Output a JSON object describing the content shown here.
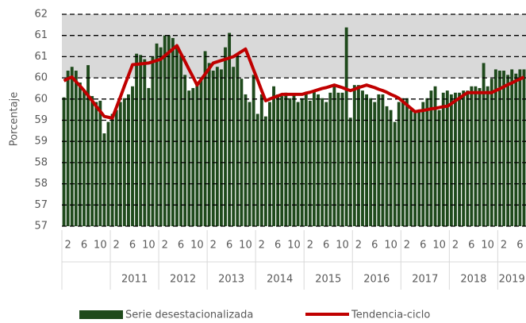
{
  "chart_data": {
    "type": "bar_line",
    "y_axis_label": "Porcentaje",
    "categories": [
      null,
      "2",
      null,
      null,
      null,
      "6",
      null,
      null,
      null,
      "10",
      null,
      null,
      null,
      "2",
      null,
      null,
      null,
      "6",
      null,
      null,
      null,
      "10",
      null,
      null,
      null,
      "2",
      null,
      null,
      null,
      "6",
      null,
      null,
      null,
      "10",
      null,
      null,
      null,
      "2",
      null,
      null,
      null,
      "6",
      null,
      null,
      null,
      "10",
      null,
      null,
      null,
      "2",
      null,
      null,
      null,
      "6",
      null,
      null,
      null,
      "10",
      null,
      null,
      null,
      "2",
      null,
      null,
      null,
      "6",
      null,
      null,
      null,
      "10",
      null,
      null,
      null,
      "2",
      null,
      null,
      null,
      "6",
      null,
      null,
      null,
      "10",
      null,
      null,
      null,
      "2",
      null,
      null,
      null,
      "6",
      null,
      null,
      null,
      "10",
      null,
      null,
      null,
      "2",
      null,
      null,
      null,
      "6",
      null,
      null,
      null,
      "10",
      null,
      null,
      null,
      "2",
      null,
      null,
      null,
      "6",
      null
    ],
    "year_labels": [
      null,
      "2011",
      "2012",
      "2013",
      "2014",
      "2015",
      "2016",
      "2017",
      "2018",
      "2019"
    ],
    "series": [
      {
        "name": "Serie desestacionalizada",
        "kind": "bar",
        "color": "#1f4a1c",
        "values": [
          59.94,
          60.57,
          60.66,
          60.57,
          60.29,
          60.1,
          60.7,
          59.97,
          59.83,
          59.86,
          59.09,
          59.36,
          59.55,
          59.64,
          59.83,
          59.92,
          60.01,
          60.2,
          60.97,
          60.94,
          60.84,
          60.16,
          60.9,
          61.21,
          61.12,
          61.4,
          61.4,
          61.34,
          61.12,
          60.94,
          60.47,
          60.1,
          60.16,
          60.23,
          60.38,
          61.03,
          60.75,
          60.57,
          60.66,
          60.6,
          61.12,
          61.46,
          60.66,
          60.94,
          60.38,
          60.01,
          59.83,
          60.47,
          59.55,
          60.01,
          59.49,
          59.83,
          60.2,
          60.01,
          59.97,
          60.05,
          59.92,
          60.01,
          59.83,
          59.92,
          60.05,
          59.86,
          60.1,
          60.01,
          59.92,
          59.83,
          60.05,
          60.23,
          60.05,
          60.05,
          61.59,
          59.46,
          60.23,
          60.23,
          60.1,
          60.01,
          59.92,
          59.83,
          60.01,
          60.01,
          59.73,
          59.64,
          59.36,
          59.83,
          59.92,
          59.92,
          59.64,
          59.64,
          59.64,
          59.83,
          59.92,
          60.1,
          60.2,
          59.64,
          60.05,
          60.1,
          60.01,
          60.05,
          60.05,
          60.1,
          60.1,
          60.2,
          60.2,
          60.16,
          60.75,
          60.2,
          60.38,
          60.6,
          60.57,
          60.57,
          60.47,
          60.6,
          60.5,
          60.6,
          60.6
        ]
      },
      {
        "name": "Tendencia-ciclo",
        "kind": "line",
        "color": "#c00000",
        "values": [
          60.33,
          60.38,
          60.42,
          60.31,
          60.21,
          60.1,
          59.98,
          59.86,
          59.73,
          59.61,
          59.49,
          59.47,
          59.45,
          59.7,
          59.95,
          60.21,
          60.46,
          60.71,
          60.72,
          60.73,
          60.74,
          60.75,
          60.78,
          60.81,
          60.84,
          60.92,
          61.0,
          61.08,
          61.16,
          60.97,
          60.79,
          60.6,
          60.42,
          60.23,
          60.36,
          60.49,
          60.62,
          60.75,
          60.78,
          60.81,
          60.84,
          60.87,
          60.9,
          60.96,
          61.02,
          61.08,
          60.84,
          60.59,
          60.35,
          60.1,
          59.86,
          59.9,
          59.94,
          59.97,
          60.01,
          60.01,
          60.01,
          60.01,
          60.01,
          60.01,
          60.04,
          60.06,
          60.09,
          60.12,
          60.15,
          60.17,
          60.2,
          60.23,
          60.2,
          60.17,
          60.13,
          60.1,
          60.13,
          60.17,
          60.2,
          60.23,
          60.2,
          60.17,
          60.13,
          60.1,
          60.06,
          60.01,
          59.97,
          59.92,
          59.84,
          59.76,
          59.68,
          59.6,
          59.62,
          59.63,
          59.65,
          59.67,
          59.68,
          59.7,
          59.72,
          59.73,
          59.79,
          59.86,
          59.92,
          59.99,
          60.05,
          60.05,
          60.05,
          60.05,
          60.05,
          60.05,
          60.05,
          60.1,
          60.14,
          60.19,
          60.24,
          60.28,
          60.33,
          60.37,
          60.42
        ]
      }
    ],
    "ylim": [
      56.9,
      61.9
    ],
    "yticks": [
      {
        "value": 56.9,
        "label": "57"
      },
      {
        "value": 57.4,
        "label": "57"
      },
      {
        "value": 57.9,
        "label": "58"
      },
      {
        "value": 58.4,
        "label": "58"
      },
      {
        "value": 58.9,
        "label": "59"
      },
      {
        "value": 59.4,
        "label": "59"
      },
      {
        "value": 59.9,
        "label": "60"
      },
      {
        "value": 60.4,
        "label": "60"
      },
      {
        "value": 60.9,
        "label": "61"
      },
      {
        "value": 61.4,
        "label": "61"
      },
      {
        "value": 61.9,
        "label": "62"
      }
    ],
    "shaded_band": [
      60.4,
      61.9
    ],
    "shade_color": "#d9d9d9",
    "grid": true,
    "legend": "bottom"
  }
}
